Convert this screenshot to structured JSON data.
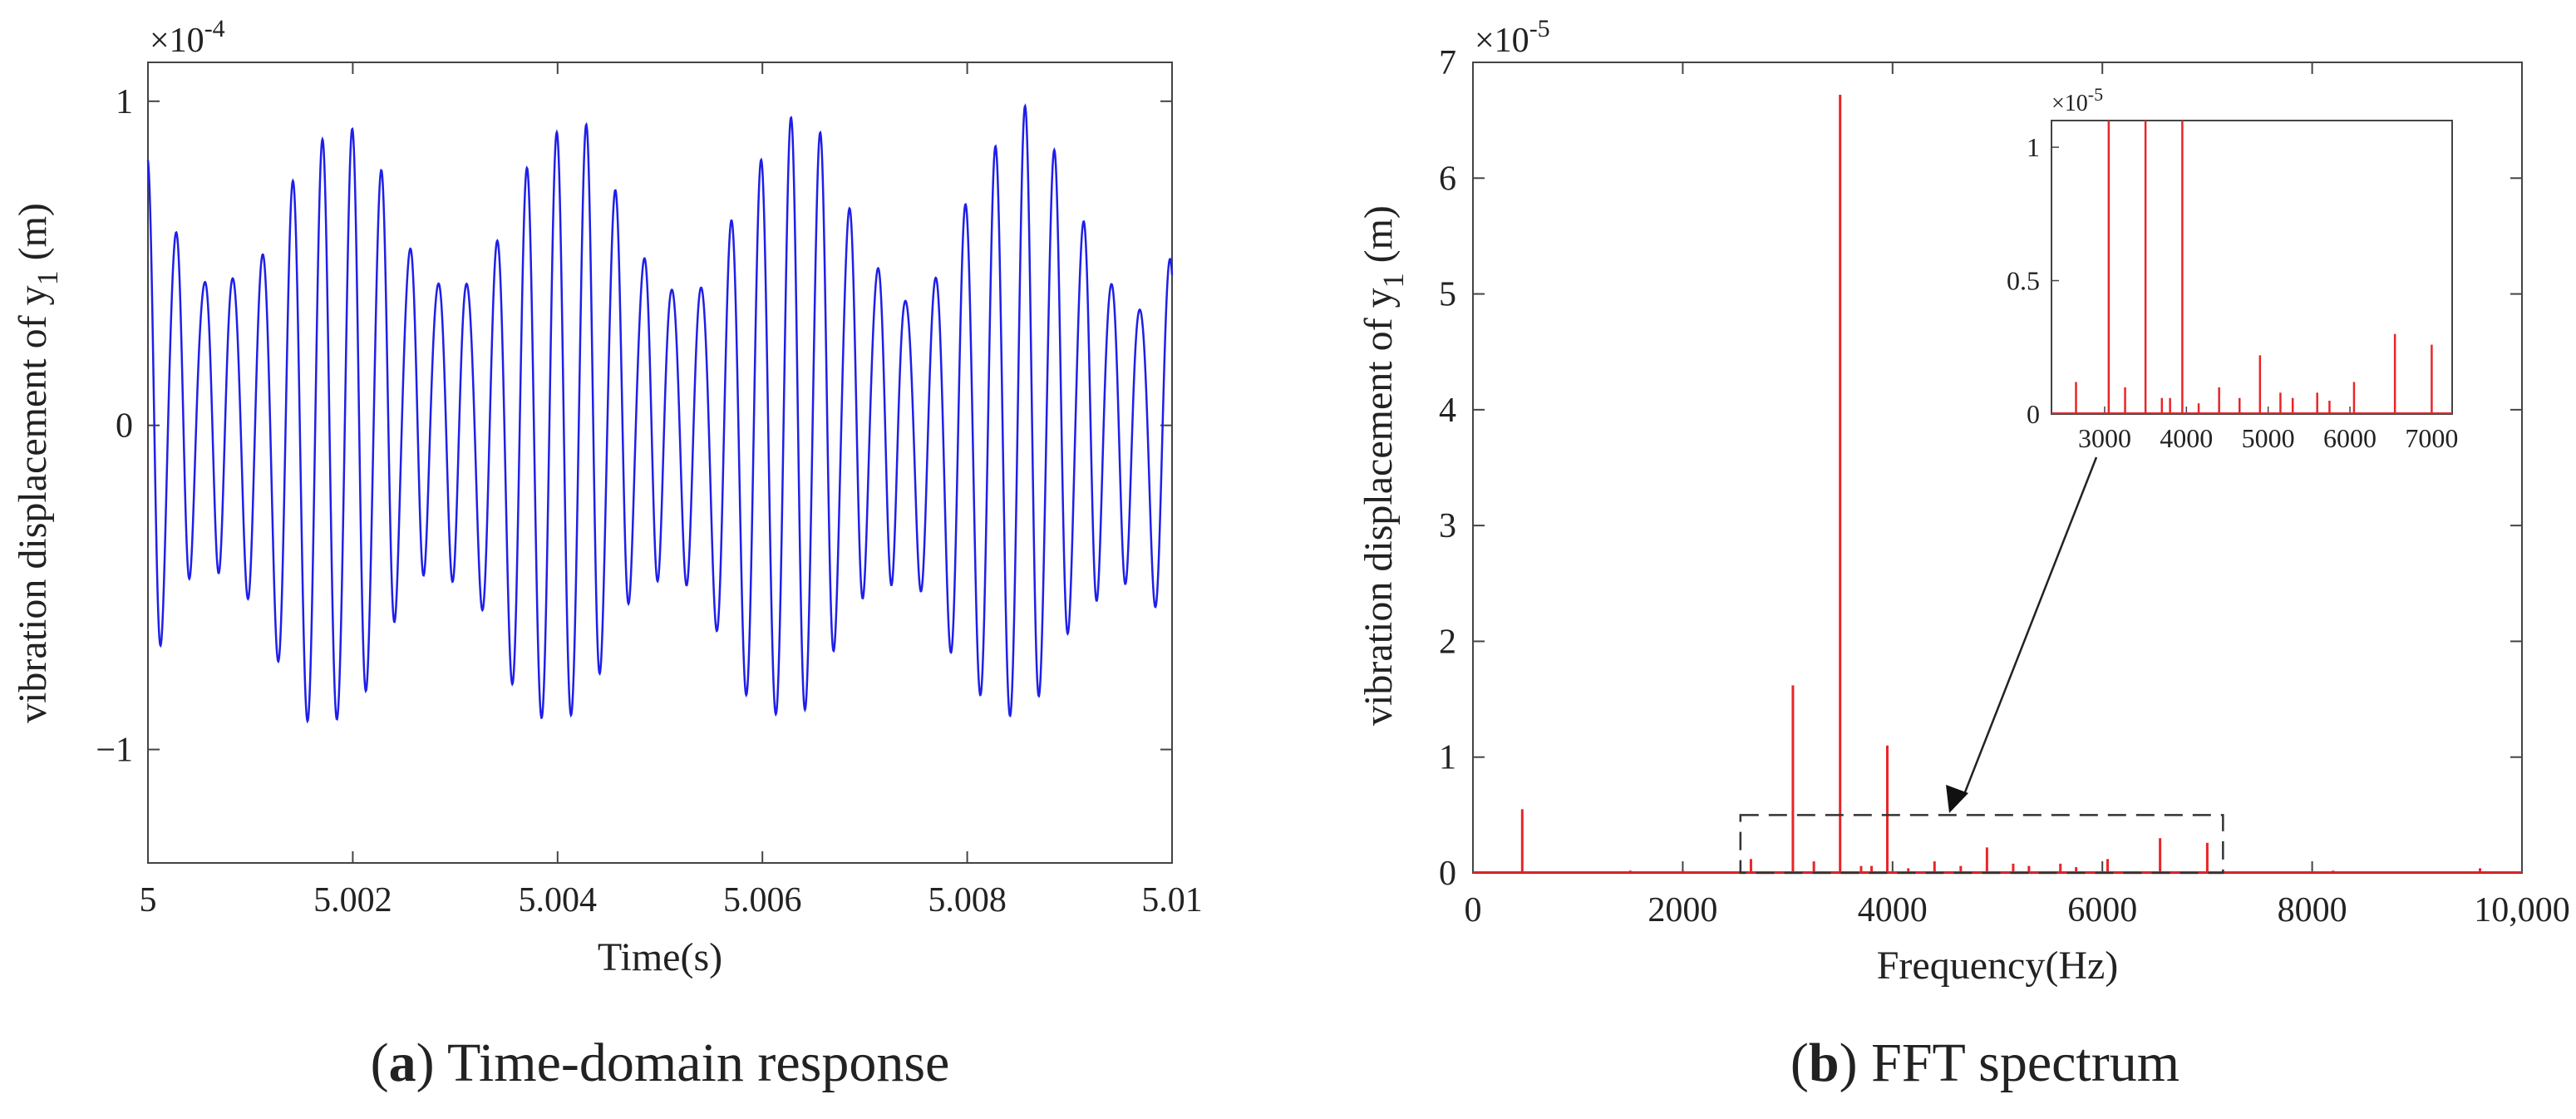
{
  "chart_data": [
    {
      "type": "line",
      "panel": "a",
      "xlabel": "Time(s)",
      "ylabel_main": "vibration displacement of y",
      "ylabel_sub": "1",
      "ylabel_unit": "(m)",
      "xlim": [
        5,
        5.01
      ],
      "ylim": [
        -1.35,
        1.12
      ],
      "y_multiplier": "×10",
      "y_multiplier_exp": "-4",
      "xticks": [
        5,
        5.002,
        5.004,
        5.006,
        5.008,
        5.01
      ],
      "xtick_labels": [
        "5",
        "5.002",
        "5.004",
        "5.006",
        "5.008",
        "5.01"
      ],
      "yticks": [
        -1,
        0,
        1
      ],
      "ytick_labels": [
        "−1",
        "0",
        "1"
      ],
      "series": [
        {
          "name": "y1",
          "color": "#1f1fe8",
          "signal": {
            "t0": 5,
            "duration": 0.01,
            "components": [
              {
                "amplitude": 0.67,
                "frequency": 3500,
                "phase": 1.9
              },
              {
                "amplitude": 0.16,
                "frequency": 3050,
                "phase": 0.4
              },
              {
                "amplitude": 0.11,
                "frequency": 3950,
                "phase": 2.6
              },
              {
                "amplitude": 0.05,
                "frequency": 470,
                "phase": 0.3
              },
              {
                "amplitude": 0.03,
                "frequency": 6550,
                "phase": 1.0
              },
              {
                "amplitude": 0.025,
                "frequency": 7000,
                "phase": 0.2
              },
              {
                "amplitude": 0.02,
                "frequency": 4900,
                "phase": 1.5
              }
            ]
          }
        }
      ],
      "caption_label": "a",
      "caption_text": "Time-domain response"
    },
    {
      "type": "bar",
      "panel": "b",
      "xlabel": "Frequency(Hz)",
      "ylabel_main": "vibration displacement of y",
      "ylabel_sub": "1",
      "ylabel_unit": "(m)",
      "xlim": [
        0,
        10000
      ],
      "ylim": [
        0,
        7
      ],
      "y_multiplier": "×10",
      "y_multiplier_exp": "-5",
      "xticks": [
        0,
        2000,
        4000,
        6000,
        8000,
        10000
      ],
      "xtick_labels": [
        "0",
        "2000",
        "4000",
        "6000",
        "8000",
        "10,000"
      ],
      "yticks": [
        0,
        1,
        2,
        3,
        4,
        5,
        6,
        7
      ],
      "ytick_labels": [
        "0",
        "1",
        "2",
        "3",
        "4",
        "5",
        "6",
        "7"
      ],
      "color": "#e8252a",
      "peaks": [
        {
          "f": 470,
          "a": 0.55
        },
        {
          "f": 3050,
          "a": 1.62
        },
        {
          "f": 3500,
          "a": 6.72
        },
        {
          "f": 3950,
          "a": 1.1
        },
        {
          "f": 2650,
          "a": 0.12
        },
        {
          "f": 3250,
          "a": 0.1
        },
        {
          "f": 3700,
          "a": 0.06
        },
        {
          "f": 3800,
          "a": 0.06
        },
        {
          "f": 4150,
          "a": 0.04
        },
        {
          "f": 4400,
          "a": 0.1
        },
        {
          "f": 4650,
          "a": 0.06
        },
        {
          "f": 4900,
          "a": 0.22
        },
        {
          "f": 5150,
          "a": 0.08
        },
        {
          "f": 5300,
          "a": 0.06
        },
        {
          "f": 5600,
          "a": 0.08
        },
        {
          "f": 5750,
          "a": 0.05
        },
        {
          "f": 6050,
          "a": 0.12
        },
        {
          "f": 6550,
          "a": 0.3
        },
        {
          "f": 7000,
          "a": 0.26
        },
        {
          "f": 1500,
          "a": 0.02
        },
        {
          "f": 2000,
          "a": 0.02
        },
        {
          "f": 8200,
          "a": 0.02
        },
        {
          "f": 9600,
          "a": 0.04
        }
      ],
      "highlight_box": {
        "x": [
          2550,
          7150
        ],
        "y": [
          0,
          0.5
        ]
      },
      "inset": {
        "xlim": [
          2350,
          7250
        ],
        "ylim": [
          0,
          1.1
        ],
        "xticks": [
          3000,
          4000,
          5000,
          6000,
          7000
        ],
        "xtick_labels": [
          "3000",
          "4000",
          "5000",
          "6000",
          "7000"
        ],
        "yticks": [
          0,
          0.5,
          1
        ],
        "ytick_labels": [
          "0",
          "0.5",
          "1"
        ],
        "y_multiplier": "×10",
        "y_multiplier_exp": "-5"
      },
      "caption_label": "b",
      "caption_text": "FFT spectrum"
    }
  ]
}
